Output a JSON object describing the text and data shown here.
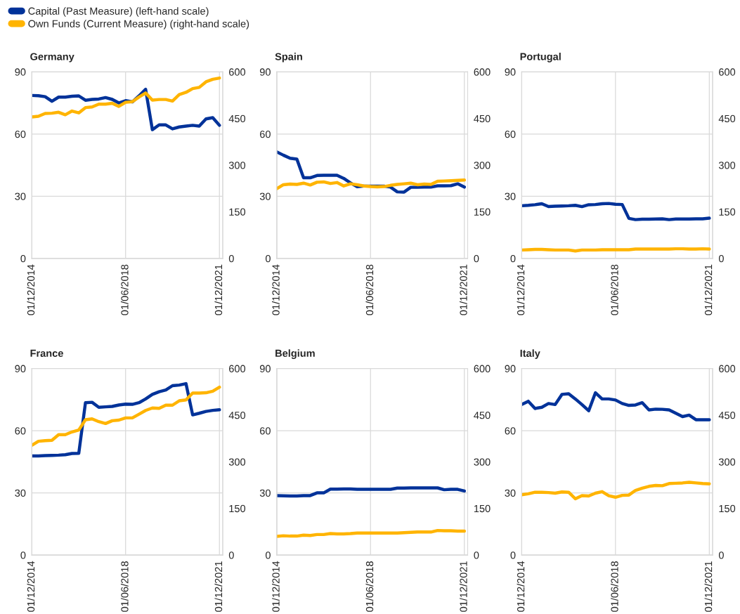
{
  "chart_data": [
    {
      "type": "line",
      "title": "Germany",
      "legend": "top left",
      "grid": true,
      "x": [
        "2014-12-01",
        "2015-03-01",
        "2015-06-01",
        "2015-09-01",
        "2015-12-01",
        "2016-03-01",
        "2016-06-01",
        "2016-09-01",
        "2016-12-01",
        "2017-03-01",
        "2017-06-01",
        "2017-09-01",
        "2017-12-01",
        "2018-03-01",
        "2018-06-01",
        "2018-09-01",
        "2018-12-01",
        "2019-03-01",
        "2019-06-01",
        "2019-09-01",
        "2019-12-01",
        "2020-03-01",
        "2020-06-01",
        "2020-09-01",
        "2020-12-01",
        "2021-03-01",
        "2021-06-01",
        "2021-09-01",
        "2021-12-01"
      ],
      "xlim": [
        "2014-12-01",
        "2022-01-15"
      ],
      "xticks": [
        {
          "value": "2014-12-01",
          "label": "01/12/2014"
        },
        {
          "value": "2018-06-01",
          "label": "01/06/2018"
        },
        {
          "value": "2021-12-01",
          "label": "01/12/2021"
        }
      ],
      "ylim": [
        0,
        90
      ],
      "yticks": [
        0,
        30,
        60,
        90
      ],
      "y2lim": [
        0,
        600
      ],
      "y2ticks": [
        0,
        150,
        300,
        450,
        600
      ],
      "series": [
        {
          "name": "Capital (Past Measure) (left-hand scale)",
          "color": "#003299",
          "values": [
            78.6,
            78.5,
            78.0,
            75.8,
            77.8,
            77.8,
            78.2,
            78.4,
            76.3,
            76.7,
            76.9,
            77.6,
            76.7,
            75.0,
            76.1,
            75.5,
            78.4,
            81.6,
            62.1,
            64.4,
            64.4,
            62.5,
            63.4,
            63.8,
            64.2,
            63.8,
            67.3,
            67.9,
            64.2
          ]
        },
        {
          "name": "Own Funds (Current Measure) (right-hand scale)",
          "color": "#ffb400",
          "axis": "y2",
          "values": [
            455,
            457,
            466,
            467,
            470,
            462,
            474,
            468,
            485,
            487,
            496,
            496,
            499,
            489,
            502,
            504,
            519,
            532,
            509,
            511,
            511,
            506,
            527,
            534,
            546,
            550,
            568,
            576,
            580
          ]
        }
      ]
    },
    {
      "type": "line",
      "title": "Spain",
      "grid": true,
      "x": [
        "2014-12-01",
        "2015-03-01",
        "2015-06-01",
        "2015-09-01",
        "2015-12-01",
        "2016-03-01",
        "2016-06-01",
        "2016-09-01",
        "2016-12-01",
        "2017-03-01",
        "2017-06-01",
        "2017-09-01",
        "2017-12-01",
        "2018-03-01",
        "2018-06-01",
        "2018-09-01",
        "2018-12-01",
        "2019-03-01",
        "2019-06-01",
        "2019-09-01",
        "2019-12-01",
        "2020-03-01",
        "2020-06-01",
        "2020-09-01",
        "2020-12-01",
        "2021-03-01",
        "2021-06-01",
        "2021-09-01",
        "2021-12-01"
      ],
      "xlim": [
        "2014-12-01",
        "2022-01-15"
      ],
      "xticks": [
        {
          "value": "2014-12-01",
          "label": "01/12/2014"
        },
        {
          "value": "2018-06-01",
          "label": "01/06/2018"
        },
        {
          "value": "2021-12-01",
          "label": "01/12/2021"
        }
      ],
      "ylim": [
        0,
        90
      ],
      "yticks": [
        0,
        30,
        60,
        90
      ],
      "y2lim": [
        0,
        600
      ],
      "y2ticks": [
        0,
        150,
        300,
        450,
        600
      ],
      "series": [
        {
          "color": "#003299",
          "values": [
            51.4,
            49.8,
            48.3,
            47.9,
            38.9,
            38.9,
            40.0,
            40.1,
            40.1,
            40.1,
            38.6,
            36.4,
            34.6,
            34.9,
            34.9,
            34.9,
            34.9,
            34.4,
            32.1,
            32.0,
            34.3,
            34.3,
            34.4,
            34.4,
            35.0,
            35.0,
            35.1,
            36.0,
            34.4
          ]
        },
        {
          "color": "#ffb400",
          "axis": "y2",
          "values": [
            224,
            237,
            239,
            238,
            242,
            236,
            245,
            246,
            241,
            244,
            233,
            240,
            237,
            233,
            231,
            230,
            231,
            235,
            238,
            240,
            242,
            237,
            239,
            238,
            248,
            249,
            250,
            251,
            252
          ]
        }
      ]
    },
    {
      "type": "line",
      "title": "Portugal",
      "grid": true,
      "x": [
        "2014-12-01",
        "2015-03-01",
        "2015-06-01",
        "2015-09-01",
        "2015-12-01",
        "2016-03-01",
        "2016-06-01",
        "2016-09-01",
        "2016-12-01",
        "2017-03-01",
        "2017-06-01",
        "2017-09-01",
        "2017-12-01",
        "2018-03-01",
        "2018-06-01",
        "2018-09-01",
        "2018-12-01",
        "2019-03-01",
        "2019-06-01",
        "2019-09-01",
        "2019-12-01",
        "2020-03-01",
        "2020-06-01",
        "2020-09-01",
        "2020-12-01",
        "2021-03-01",
        "2021-06-01",
        "2021-09-01",
        "2021-12-01"
      ],
      "xlim": [
        "2014-12-01",
        "2022-01-15"
      ],
      "xticks": [
        {
          "value": "2014-12-01",
          "label": "01/12/2014"
        },
        {
          "value": "2018-06-01",
          "label": "01/06/2018"
        },
        {
          "value": "2021-12-01",
          "label": "01/12/2021"
        }
      ],
      "ylim": [
        0,
        90
      ],
      "yticks": [
        0,
        30,
        60,
        90
      ],
      "y2lim": [
        0,
        600
      ],
      "y2ticks": [
        0,
        150,
        300,
        450,
        600
      ],
      "series": [
        {
          "color": "#003299",
          "values": [
            25.4,
            25.6,
            25.9,
            26.4,
            25.0,
            25.2,
            25.3,
            25.4,
            25.6,
            25.0,
            25.9,
            26.0,
            26.4,
            26.5,
            26.1,
            26.0,
            19.3,
            18.7,
            18.9,
            18.9,
            19.0,
            19.1,
            18.7,
            19.0,
            19.0,
            19.0,
            19.1,
            19.1,
            19.4
          ]
        },
        {
          "color": "#ffb400",
          "axis": "y2",
          "values": [
            27,
            28,
            29,
            29,
            28,
            27,
            27,
            27,
            24,
            27,
            27,
            27,
            28,
            28,
            28,
            28,
            28,
            30,
            30,
            30,
            30,
            30,
            30,
            31,
            31,
            30,
            30,
            31,
            30
          ]
        }
      ]
    },
    {
      "type": "line",
      "title": "France",
      "grid": true,
      "x": [
        "2014-12-01",
        "2015-03-01",
        "2015-06-01",
        "2015-09-01",
        "2015-12-01",
        "2016-03-01",
        "2016-06-01",
        "2016-09-01",
        "2016-12-01",
        "2017-03-01",
        "2017-06-01",
        "2017-09-01",
        "2017-12-01",
        "2018-03-01",
        "2018-06-01",
        "2018-09-01",
        "2018-12-01",
        "2019-03-01",
        "2019-06-01",
        "2019-09-01",
        "2019-12-01",
        "2020-03-01",
        "2020-06-01",
        "2020-09-01",
        "2020-12-01",
        "2021-03-01",
        "2021-06-01",
        "2021-09-01",
        "2021-12-01"
      ],
      "xlim": [
        "2014-12-01",
        "2022-01-15"
      ],
      "xticks": [
        {
          "value": "2014-12-01",
          "label": "01/12/2014"
        },
        {
          "value": "2018-06-01",
          "label": "01/06/2018"
        },
        {
          "value": "2021-12-01",
          "label": "01/12/2021"
        }
      ],
      "ylim": [
        0,
        90
      ],
      "yticks": [
        0,
        30,
        60,
        90
      ],
      "y2lim": [
        0,
        600
      ],
      "y2ticks": [
        0,
        150,
        300,
        450,
        600
      ],
      "series": [
        {
          "color": "#003299",
          "values": [
            47.8,
            47.8,
            48.0,
            48.1,
            48.2,
            48.4,
            49.0,
            49.1,
            73.5,
            73.7,
            71.3,
            71.5,
            71.7,
            72.4,
            72.8,
            72.7,
            73.5,
            75.3,
            77.5,
            78.8,
            79.6,
            81.7,
            82.0,
            82.7,
            67.6,
            68.4,
            69.3,
            69.8,
            70.1
          ]
        },
        {
          "color": "#ffb400",
          "axis": "y2",
          "values": [
            353,
            366,
            368,
            369,
            387,
            387,
            396,
            402,
            435,
            438,
            429,
            423,
            432,
            434,
            441,
            441,
            453,
            465,
            473,
            472,
            482,
            482,
            496,
            499,
            521,
            521,
            522,
            527,
            540
          ]
        }
      ]
    },
    {
      "type": "line",
      "title": "Belgium",
      "grid": true,
      "x": [
        "2014-12-01",
        "2015-03-01",
        "2015-06-01",
        "2015-09-01",
        "2015-12-01",
        "2016-03-01",
        "2016-06-01",
        "2016-09-01",
        "2016-12-01",
        "2017-03-01",
        "2017-06-01",
        "2017-09-01",
        "2017-12-01",
        "2018-03-01",
        "2018-06-01",
        "2018-09-01",
        "2018-12-01",
        "2019-03-01",
        "2019-06-01",
        "2019-09-01",
        "2019-12-01",
        "2020-03-01",
        "2020-06-01",
        "2020-09-01",
        "2020-12-01",
        "2021-03-01",
        "2021-06-01",
        "2021-09-01",
        "2021-12-01"
      ],
      "xlim": [
        "2014-12-01",
        "2022-01-15"
      ],
      "xticks": [
        {
          "value": "2014-12-01",
          "label": "01/12/2014"
        },
        {
          "value": "2018-06-01",
          "label": "01/06/2018"
        },
        {
          "value": "2021-12-01",
          "label": "01/12/2021"
        }
      ],
      "ylim": [
        0,
        90
      ],
      "yticks": [
        0,
        30,
        60,
        90
      ],
      "y2lim": [
        0,
        600
      ],
      "y2ticks": [
        0,
        150,
        300,
        450,
        600
      ],
      "series": [
        {
          "color": "#003299",
          "values": [
            28.7,
            28.6,
            28.5,
            28.5,
            28.7,
            28.7,
            30.0,
            30.0,
            31.8,
            31.8,
            31.9,
            31.9,
            31.7,
            31.7,
            31.7,
            31.7,
            31.7,
            31.7,
            32.3,
            32.3,
            32.4,
            32.4,
            32.4,
            32.4,
            32.4,
            31.5,
            31.7,
            31.7,
            30.9
          ]
        },
        {
          "color": "#ffb400",
          "axis": "y2",
          "values": [
            60,
            62,
            61,
            61,
            64,
            63,
            66,
            66,
            69,
            68,
            68,
            69,
            71,
            71,
            71,
            71,
            71,
            71,
            71,
            72,
            73,
            74,
            74,
            74,
            79,
            78,
            78,
            77,
            77
          ]
        }
      ]
    },
    {
      "type": "line",
      "title": "Italy",
      "grid": true,
      "x": [
        "2014-12-01",
        "2015-03-01",
        "2015-06-01",
        "2015-09-01",
        "2015-12-01",
        "2016-03-01",
        "2016-06-01",
        "2016-09-01",
        "2016-12-01",
        "2017-03-01",
        "2017-06-01",
        "2017-09-01",
        "2017-12-01",
        "2018-03-01",
        "2018-06-01",
        "2018-09-01",
        "2018-12-01",
        "2019-03-01",
        "2019-06-01",
        "2019-09-01",
        "2019-12-01",
        "2020-03-01",
        "2020-06-01",
        "2020-09-01",
        "2020-12-01",
        "2021-03-01",
        "2021-06-01",
        "2021-09-01",
        "2021-12-01"
      ],
      "xlim": [
        "2014-12-01",
        "2022-01-15"
      ],
      "xticks": [
        {
          "value": "2014-12-01",
          "label": "01/12/2014"
        },
        {
          "value": "2018-06-01",
          "label": "01/06/2018"
        },
        {
          "value": "2021-12-01",
          "label": "01/12/2021"
        }
      ],
      "ylim": [
        0,
        90
      ],
      "yticks": [
        0,
        30,
        60,
        90
      ],
      "y2lim": [
        0,
        600
      ],
      "y2ticks": [
        0,
        150,
        300,
        450,
        600
      ],
      "series": [
        {
          "color": "#003299",
          "values": [
            72.6,
            74.2,
            70.7,
            71.3,
            73.1,
            72.6,
            77.5,
            77.8,
            75.3,
            72.6,
            69.6,
            78.3,
            75.3,
            75.3,
            74.8,
            73.1,
            72.2,
            72.4,
            73.5,
            70.0,
            70.4,
            70.3,
            70.0,
            68.4,
            66.8,
            67.5,
            65.3,
            65.3,
            65.3
          ]
        },
        {
          "color": "#ffb400",
          "axis": "y2",
          "values": [
            194,
            197,
            202,
            202,
            201,
            199,
            203,
            202,
            181,
            191,
            190,
            199,
            204,
            191,
            186,
            192,
            193,
            208,
            215,
            221,
            224,
            223,
            230,
            231,
            232,
            234,
            232,
            230,
            229
          ]
        }
      ]
    }
  ]
}
